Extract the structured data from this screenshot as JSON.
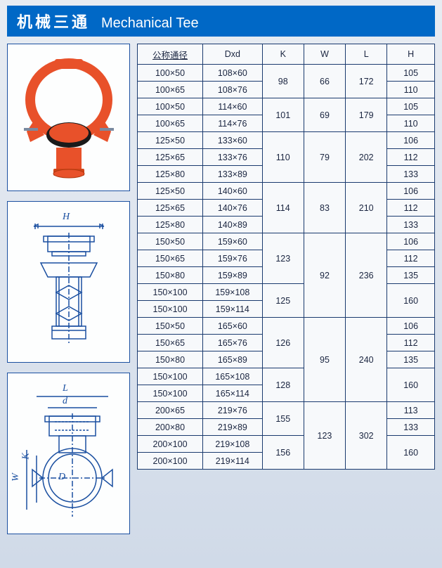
{
  "header": {
    "cn": "机械三通",
    "en": "Mechanical Tee"
  },
  "table": {
    "columns": [
      "公称通径",
      "Dxd",
      "K",
      "W",
      "L",
      "H"
    ],
    "col_widths": [
      "22%",
      "20%",
      "14%",
      "14%",
      "14%",
      "16%"
    ],
    "header_bg": "#f7f9fb",
    "border_color": "#1a3a6e",
    "rows": [
      {
        "c0": "100×50",
        "c1": "108×60",
        "c2": {
          "v": "98",
          "span": 2
        },
        "c3": {
          "v": "66",
          "span": 2
        },
        "c4": {
          "v": "172",
          "span": 2
        },
        "c5": "105"
      },
      {
        "c0": "100×65",
        "c1": "108×76",
        "c5": "110"
      },
      {
        "c0": "100×50",
        "c1": "114×60",
        "c2": {
          "v": "101",
          "span": 2
        },
        "c3": {
          "v": "69",
          "span": 2
        },
        "c4": {
          "v": "179",
          "span": 2
        },
        "c5": "105"
      },
      {
        "c0": "100×65",
        "c1": "114×76",
        "c5": "110"
      },
      {
        "c0": "125×50",
        "c1": "133×60",
        "c2": {
          "v": "110",
          "span": 3
        },
        "c3": {
          "v": "79",
          "span": 3
        },
        "c4": {
          "v": "202",
          "span": 3
        },
        "c5": "106"
      },
      {
        "c0": "125×65",
        "c1": "133×76",
        "c5": "112"
      },
      {
        "c0": "125×80",
        "c1": "133×89",
        "c5": "133"
      },
      {
        "c0": "125×50",
        "c1": "140×60",
        "c2": {
          "v": "114",
          "span": 3
        },
        "c3": {
          "v": "83",
          "span": 3
        },
        "c4": {
          "v": "210",
          "span": 3
        },
        "c5": "106"
      },
      {
        "c0": "125×65",
        "c1": "140×76",
        "c5": "112"
      },
      {
        "c0": "125×80",
        "c1": "140×89",
        "c5": "133"
      },
      {
        "c0": "150×50",
        "c1": "159×60",
        "c2": {
          "v": "123",
          "span": 3
        },
        "c3": {
          "v": "92",
          "span": 5
        },
        "c4": {
          "v": "236",
          "span": 5
        },
        "c5": "106"
      },
      {
        "c0": "150×65",
        "c1": "159×76",
        "c5": "112"
      },
      {
        "c0": "150×80",
        "c1": "159×89",
        "c5": "135"
      },
      {
        "c0": "150×100",
        "c1": "159×108",
        "c2": {
          "v": "125",
          "span": 2
        },
        "c5": {
          "v": "160",
          "span": 2
        }
      },
      {
        "c0": "150×100",
        "c1": "159×114"
      },
      {
        "c0": "150×50",
        "c1": "165×60",
        "c2": {
          "v": "126",
          "span": 3
        },
        "c3": {
          "v": "95",
          "span": 5
        },
        "c4": {
          "v": "240",
          "span": 5
        },
        "c5": "106"
      },
      {
        "c0": "150×65",
        "c1": "165×76",
        "c5": "112"
      },
      {
        "c0": "150×80",
        "c1": "165×89",
        "c5": "135"
      },
      {
        "c0": "150×100",
        "c1": "165×108",
        "c2": {
          "v": "128",
          "span": 2
        },
        "c5": {
          "v": "160",
          "span": 2
        }
      },
      {
        "c0": "150×100",
        "c1": "165×114"
      },
      {
        "c0": "200×65",
        "c1": "219×76",
        "c2": {
          "v": "155",
          "span": 2
        },
        "c3": {
          "v": "123",
          "span": 4
        },
        "c4": {
          "v": "302",
          "span": 4
        },
        "c5": "113"
      },
      {
        "c0": "200×80",
        "c1": "219×89",
        "c5": "133"
      },
      {
        "c0": "200×100",
        "c1": "219×108",
        "c2": {
          "v": "156",
          "span": 2
        },
        "c5": {
          "v": "160",
          "span": 2
        }
      },
      {
        "c0": "200×100",
        "c1": "219×114"
      }
    ]
  },
  "dims": {
    "H": "H",
    "L": "L",
    "d": "d",
    "W": "W",
    "K": "K",
    "D": "D"
  },
  "colors": {
    "header_bg": "#0068c6",
    "header_text": "#ffffff",
    "frame": "#1a4fa0",
    "part_color": "#e8512a",
    "drawing_line": "#1a4fa0",
    "page_bg_top": "#e8ecf2",
    "page_bg_bot": "#d0dae8"
  }
}
